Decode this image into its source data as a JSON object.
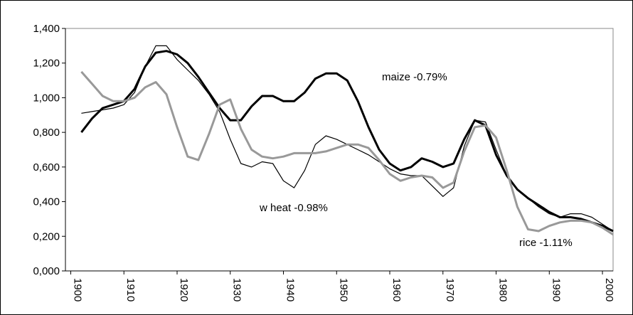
{
  "chart_data": {
    "type": "line",
    "x": [
      1902,
      1904,
      1906,
      1908,
      1910,
      1912,
      1914,
      1916,
      1918,
      1920,
      1922,
      1924,
      1926,
      1928,
      1930,
      1932,
      1934,
      1936,
      1938,
      1940,
      1942,
      1944,
      1946,
      1948,
      1950,
      1952,
      1954,
      1956,
      1958,
      1960,
      1962,
      1964,
      1966,
      1968,
      1970,
      1972,
      1974,
      1976,
      1978,
      1980,
      1982,
      1984,
      1986,
      1988,
      1990,
      1992,
      1994,
      1996,
      1998,
      2000,
      2002
    ],
    "series": [
      {
        "color": "#000000",
        "values": [
          0.8,
          0.88,
          0.94,
          0.96,
          0.98,
          1.05,
          1.18,
          1.26,
          1.27,
          1.25,
          1.2,
          1.12,
          1.03,
          0.94,
          0.87,
          0.87,
          0.95,
          1.01,
          1.01,
          0.98,
          0.98,
          1.03,
          1.11,
          1.14,
          1.14,
          1.1,
          0.98,
          0.83,
          0.7,
          0.62,
          0.58,
          0.6,
          0.65,
          0.63,
          0.6,
          0.62,
          0.76,
          0.87,
          0.84,
          0.67,
          0.55,
          0.47,
          0.42,
          0.38,
          0.34,
          0.31,
          0.31,
          0.3,
          0.28,
          0.26,
          0.23
        ]
      },
      {
        "color": "#000000",
        "values": [
          0.91,
          0.92,
          0.93,
          0.94,
          0.96,
          1.03,
          1.18,
          1.3,
          1.3,
          1.22,
          1.16,
          1.1,
          1.02,
          0.92,
          0.76,
          0.62,
          0.6,
          0.63,
          0.62,
          0.52,
          0.48,
          0.58,
          0.73,
          0.78,
          0.76,
          0.73,
          0.7,
          0.67,
          0.63,
          0.59,
          0.56,
          0.55,
          0.55,
          0.49,
          0.43,
          0.48,
          0.72,
          0.87,
          0.86,
          0.7,
          0.55,
          0.47,
          0.42,
          0.37,
          0.33,
          0.31,
          0.33,
          0.33,
          0.31,
          0.27,
          0.23
        ]
      },
      {
        "color": "#999999",
        "values": [
          1.15,
          1.08,
          1.01,
          0.98,
          0.98,
          1.0,
          1.06,
          1.09,
          1.02,
          0.83,
          0.66,
          0.64,
          0.79,
          0.96,
          0.99,
          0.82,
          0.7,
          0.66,
          0.65,
          0.66,
          0.68,
          0.68,
          0.68,
          0.69,
          0.71,
          0.73,
          0.73,
          0.71,
          0.64,
          0.56,
          0.52,
          0.54,
          0.55,
          0.54,
          0.48,
          0.51,
          0.69,
          0.83,
          0.84,
          0.77,
          0.58,
          0.37,
          0.24,
          0.23,
          0.26,
          0.28,
          0.29,
          0.29,
          0.28,
          0.25,
          0.21
        ]
      }
    ],
    "annotations": [
      "maize -0.79%",
      "w heat -0.98%",
      "rice -1.11%"
    ],
    "xlim": [
      1899,
      2002
    ],
    "xticks": [
      1900,
      1910,
      1920,
      1930,
      1940,
      1950,
      1960,
      1970,
      1980,
      1990,
      2000
    ],
    "ylim": [
      0,
      1.4
    ],
    "yticks": [
      {
        "value": 0,
        "label": "0,000"
      },
      {
        "value": 0.2,
        "label": "0,200"
      },
      {
        "value": 0.4,
        "label": "0,400"
      },
      {
        "value": 0.6,
        "label": "0,600"
      },
      {
        "value": 0.8,
        "label": "0,800"
      },
      {
        "value": 1.0,
        "label": "1,000"
      },
      {
        "value": 1.2,
        "label": "1,200"
      },
      {
        "value": 1.4,
        "label": "1,400"
      }
    ],
    "grid": false
  }
}
